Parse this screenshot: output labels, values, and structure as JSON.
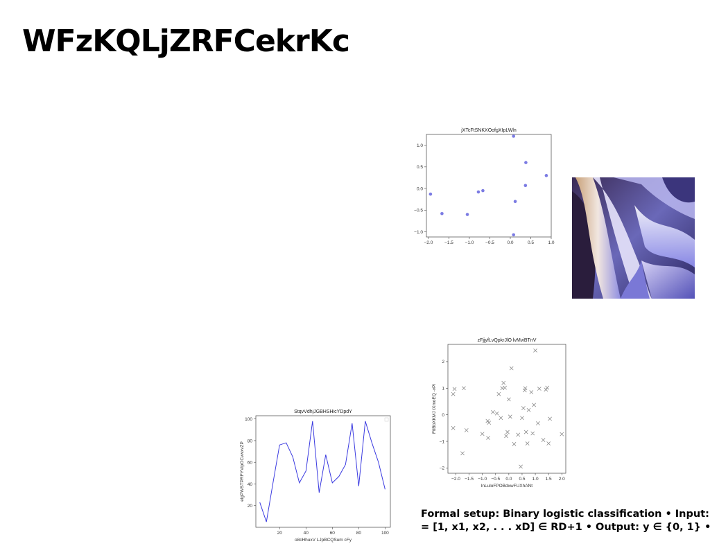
{
  "slide": {
    "title": "WFzKQLjZRFCekrKc",
    "caption_line1": "Formal setup: Binary logistic classification • Input:",
    "caption_line2": "= [1, x1, x2, . . . xD] ∈ RD+1 • Output: y ∈ {0, 1} •"
  },
  "chart_data": [
    {
      "id": "scatter_top",
      "type": "scatter",
      "title": "jXTcFtSNKXOofgXIpLWln",
      "xlabel": "",
      "ylabel": "",
      "xlim": [
        -2.05,
        1.0
      ],
      "ylim": [
        -1.12,
        1.25
      ],
      "xticks": [
        -2.0,
        -1.5,
        -1.0,
        -0.5,
        0.0,
        0.5,
        1.0
      ],
      "yticks": [
        1.0,
        0.5,
        0.0,
        -0.5,
        -1.0
      ],
      "xtick_labels": [
        "−2.0",
        "−1.5",
        "−1.0",
        "−0.5",
        "0.0",
        "0.5",
        "1.0"
      ],
      "ytick_labels": [
        "1.0",
        "0.5",
        "0.0",
        "−0.5",
        "−1.0"
      ],
      "color": "#7b7be3",
      "marker": "circle",
      "grid": false,
      "points": [
        {
          "x": -1.95,
          "y": -0.13
        },
        {
          "x": -1.67,
          "y": -0.58
        },
        {
          "x": -1.05,
          "y": -0.6
        },
        {
          "x": -0.78,
          "y": -0.08
        },
        {
          "x": -0.67,
          "y": -0.05
        },
        {
          "x": 0.08,
          "y": 1.21
        },
        {
          "x": 0.12,
          "y": -0.3
        },
        {
          "x": 0.38,
          "y": 0.6
        },
        {
          "x": 0.37,
          "y": 0.07
        },
        {
          "x": 0.88,
          "y": 0.3
        },
        {
          "x": 0.08,
          "y": -1.07
        }
      ]
    },
    {
      "id": "scatter_mid",
      "type": "scatter",
      "title": "zFjjyfLvQpkrJlO lvMviBTnV",
      "xlabel": "lnLuloFPOBdxwFUXhANt",
      "ylabel": "FtlBbXKMJ tXmoEQ -vPl",
      "xlim": [
        -2.3,
        2.15
      ],
      "ylim": [
        -2.2,
        2.65
      ],
      "xticks": [
        -2.0,
        -1.5,
        -1.0,
        -0.5,
        0.0,
        0.5,
        1.0,
        1.5,
        2.0
      ],
      "yticks": [
        2,
        1,
        0,
        -1,
        -2
      ],
      "xtick_labels": [
        "−2.0",
        "−1.5",
        "−1.0",
        "−0.5",
        "0.0",
        "0.5",
        "1.0",
        "1.5",
        "2.0"
      ],
      "ytick_labels": [
        "2",
        "1",
        "0",
        "−1",
        "−2"
      ],
      "color": "#8c8c8c",
      "marker": "x",
      "grid": false,
      "points": [
        {
          "x": -2.1,
          "y": 0.78
        },
        {
          "x": -2.05,
          "y": 0.97
        },
        {
          "x": -2.1,
          "y": -0.5
        },
        {
          "x": -1.7,
          "y": 1.0
        },
        {
          "x": -1.6,
          "y": -0.58
        },
        {
          "x": -1.75,
          "y": -1.45
        },
        {
          "x": -1.0,
          "y": -0.72
        },
        {
          "x": -0.8,
          "y": -0.23
        },
        {
          "x": -0.78,
          "y": -0.87
        },
        {
          "x": -0.75,
          "y": -0.3
        },
        {
          "x": -0.6,
          "y": 0.1
        },
        {
          "x": -0.45,
          "y": 0.05
        },
        {
          "x": -0.38,
          "y": 0.78
        },
        {
          "x": -0.3,
          "y": -0.12
        },
        {
          "x": -0.25,
          "y": 1.0
        },
        {
          "x": -0.2,
          "y": 1.2
        },
        {
          "x": -0.15,
          "y": 1.02
        },
        {
          "x": -0.1,
          "y": -0.8
        },
        {
          "x": -0.05,
          "y": -0.65
        },
        {
          "x": 0.0,
          "y": 0.58
        },
        {
          "x": 0.05,
          "y": -0.07
        },
        {
          "x": 0.1,
          "y": 1.75
        },
        {
          "x": 0.2,
          "y": -1.1
        },
        {
          "x": 0.35,
          "y": -0.75
        },
        {
          "x": 0.45,
          "y": -1.95
        },
        {
          "x": 0.5,
          "y": -0.12
        },
        {
          "x": 0.55,
          "y": 0.25
        },
        {
          "x": 0.6,
          "y": 0.92
        },
        {
          "x": 0.62,
          "y": 1.0
        },
        {
          "x": 0.65,
          "y": -0.65
        },
        {
          "x": 0.7,
          "y": -1.08
        },
        {
          "x": 0.75,
          "y": 0.18
        },
        {
          "x": 0.85,
          "y": 0.85
        },
        {
          "x": 0.9,
          "y": -0.7
        },
        {
          "x": 0.95,
          "y": 0.37
        },
        {
          "x": 1.0,
          "y": 2.42
        },
        {
          "x": 1.1,
          "y": -0.32
        },
        {
          "x": 1.15,
          "y": 0.98
        },
        {
          "x": 1.3,
          "y": -0.95
        },
        {
          "x": 1.4,
          "y": 0.95
        },
        {
          "x": 1.45,
          "y": 1.02
        },
        {
          "x": 1.5,
          "y": -1.08
        },
        {
          "x": 1.55,
          "y": -0.15
        },
        {
          "x": 2.0,
          "y": -0.73
        }
      ]
    },
    {
      "id": "line_bottom",
      "type": "line",
      "title": "StqvVdhjJGBHSHicYDpdY",
      "xlabel": "o8cHhuxV LJpBCQSum cFy",
      "ylabel": "elgPWSTPRFYVipOCvwxvZP",
      "xlim": [
        2,
        104
      ],
      "ylim": [
        0,
        103
      ],
      "xticks": [
        20,
        40,
        60,
        80,
        100
      ],
      "yticks": [
        100,
        80,
        60,
        40,
        20
      ],
      "xtick_labels": [
        "20",
        "40",
        "60",
        "80",
        "100"
      ],
      "ytick_labels": [
        "100",
        "80",
        "60",
        "40",
        "20"
      ],
      "color": "#3a3ae0",
      "grid": false,
      "legend": "top-right",
      "x": [
        5,
        10,
        15,
        20,
        25,
        30,
        35,
        40,
        45,
        50,
        55,
        60,
        65,
        70,
        75,
        80,
        85,
        90,
        95,
        100
      ],
      "y": [
        23,
        5,
        41,
        76,
        78,
        65,
        41,
        52,
        98,
        32,
        67,
        41,
        47,
        58,
        96,
        38,
        98,
        78,
        60,
        35
      ]
    }
  ]
}
